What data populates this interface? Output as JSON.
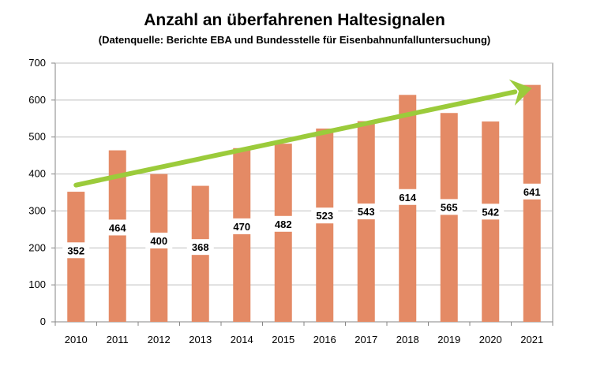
{
  "chart_data": {
    "type": "bar",
    "title": "Anzahl an überfahrenen Haltesignalen",
    "subtitle": "(Datenquelle: Berichte EBA und Bundesstelle für Eisenbahnunfalluntersuchung)",
    "categories": [
      "2010",
      "2011",
      "2012",
      "2013",
      "2014",
      "2015",
      "2016",
      "2017",
      "2018",
      "2019",
      "2020",
      "2021"
    ],
    "values": [
      352,
      464,
      400,
      368,
      470,
      482,
      523,
      543,
      614,
      565,
      542,
      641
    ],
    "ylim": [
      0,
      700
    ],
    "yticks": [
      0,
      100,
      200,
      300,
      400,
      500,
      600,
      700
    ],
    "grid": true,
    "data_labels": true,
    "trend_arrow": {
      "from": 370,
      "to": 632
    },
    "colors": {
      "bar": "#E48A65",
      "trend": "#9BCB3B",
      "grid": "#BFBFBF",
      "axis": "#868686"
    }
  }
}
